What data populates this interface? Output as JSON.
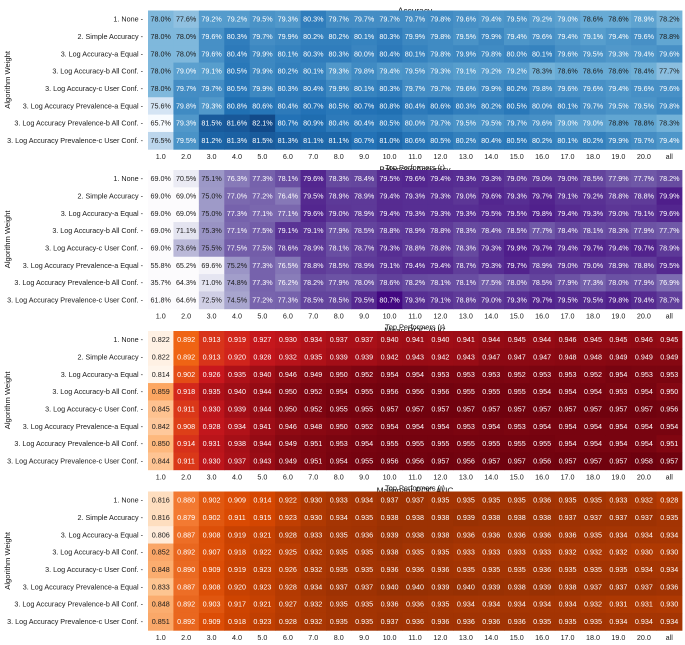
{
  "chart_data": [
    {
      "type": "heatmap",
      "title": "Accuracy",
      "format": "pct1",
      "palette": "blue",
      "vmin": 74,
      "vmax": 83,
      "xlabel": "Top Performers (r)",
      "ylabel": "Algorithm Weight",
      "xticks": [
        "1.0",
        "2.0",
        "3.0",
        "4.0",
        "5.0",
        "6.0",
        "7.0",
        "8.0",
        "9.0",
        "10.0",
        "11.0",
        "12.0",
        "13.0",
        "14.0",
        "15.0",
        "16.0",
        "17.0",
        "18.0",
        "19.0",
        "20.0",
        "all"
      ],
      "yticks": [
        "1. None",
        "2. Simple Accuracy",
        "3. Log Accuracy-a Equal",
        "3. Log Accuracy-b All Conf.",
        "3. Log Accuracy-c User Conf.",
        "3. Log Accuracy Prevalence-a Equal",
        "3. Log Accuracy Prevalence-b All Conf.",
        "3. Log Accuracy Prevalence-c User Conf."
      ],
      "values": [
        [
          78.0,
          77.6,
          79.2,
          79.2,
          79.5,
          79.3,
          80.3,
          79.7,
          79.7,
          79.7,
          79.7,
          79.8,
          79.6,
          79.4,
          79.5,
          79.2,
          79.0,
          78.6,
          78.6,
          78.9,
          78.2
        ],
        [
          78.0,
          78.0,
          79.6,
          80.3,
          79.7,
          79.9,
          80.2,
          80.2,
          80.1,
          80.3,
          79.9,
          79.8,
          79.5,
          79.9,
          79.4,
          79.6,
          79.4,
          79.1,
          79.4,
          79.6,
          78.8
        ],
        [
          78.0,
          78.0,
          79.6,
          80.4,
          79.9,
          80.1,
          80.3,
          80.3,
          80.0,
          80.4,
          80.1,
          79.8,
          79.9,
          79.8,
          80.0,
          80.1,
          79.6,
          79.5,
          79.3,
          79.4,
          79.6
        ],
        [
          78.0,
          79.0,
          79.1,
          80.5,
          79.9,
          80.2,
          80.1,
          79.3,
          79.8,
          79.4,
          79.5,
          79.3,
          79.1,
          79.2,
          79.2,
          78.3,
          78.6,
          78.6,
          78.6,
          78.4,
          77.7
        ],
        [
          78.0,
          79.7,
          79.7,
          80.5,
          79.9,
          80.3,
          80.4,
          79.9,
          80.1,
          80.3,
          79.7,
          79.7,
          79.6,
          79.9,
          80.2,
          79.8,
          79.6,
          79.6,
          79.4,
          79.6,
          79.6
        ],
        [
          75.6,
          79.8,
          79.3,
          80.8,
          80.6,
          80.4,
          80.7,
          80.5,
          80.7,
          80.8,
          80.4,
          80.6,
          80.3,
          80.2,
          80.5,
          80.0,
          80.1,
          79.7,
          79.5,
          79.5,
          79.8
        ],
        [
          65.7,
          79.3,
          81.5,
          81.6,
          82.1,
          80.7,
          80.9,
          80.4,
          80.4,
          80.5,
          80.0,
          79.7,
          79.5,
          79.5,
          79.7,
          79.6,
          79.0,
          79.0,
          78.8,
          78.8,
          78.3
        ],
        [
          76.5,
          79.5,
          81.2,
          81.3,
          81.5,
          81.3,
          81.1,
          81.1,
          80.7,
          81.0,
          80.6,
          80.5,
          80.2,
          80.4,
          80.5,
          80.2,
          80.1,
          80.2,
          79.9,
          79.7,
          79.4
        ]
      ]
    },
    {
      "type": "heatmap",
      "title": "Balanced Accuracy",
      "format": "pct1",
      "palette": "purple",
      "vmin": 69,
      "vmax": 81,
      "xlabel": "Top Performers (r)",
      "ylabel": "Algorithm Weight",
      "xticks": [
        "1.0",
        "2.0",
        "3.0",
        "4.0",
        "5.0",
        "6.0",
        "7.0",
        "8.0",
        "9.0",
        "10.0",
        "11.0",
        "12.0",
        "13.0",
        "14.0",
        "15.0",
        "16.0",
        "17.0",
        "18.0",
        "19.0",
        "20.0",
        "all"
      ],
      "yticks": [
        "1. None",
        "2. Simple Accuracy",
        "3. Log Accuracy-a Equal",
        "3. Log Accuracy-b All Conf.",
        "3. Log Accuracy-c User Conf.",
        "3. Log Accuracy Prevalence-a Equal",
        "3. Log Accuracy Prevalence-b All Conf.",
        "3. Log Accuracy Prevalence-c User Conf."
      ],
      "values": [
        [
          69.0,
          70.5,
          75.1,
          76.3,
          77.3,
          78.1,
          79.6,
          78.3,
          78.4,
          79.5,
          79.6,
          79.4,
          79.3,
          79.3,
          79.0,
          79.0,
          79.0,
          78.5,
          77.9,
          77.7,
          78.2
        ],
        [
          69.0,
          69.0,
          75.0,
          77.0,
          77.2,
          76.4,
          79.5,
          78.9,
          78.9,
          79.4,
          79.3,
          79.3,
          79.0,
          79.6,
          79.3,
          79.7,
          79.1,
          79.2,
          78.8,
          78.8,
          79.9
        ],
        [
          69.0,
          69.0,
          75.0,
          77.3,
          77.1,
          77.1,
          79.6,
          79.0,
          78.9,
          79.4,
          79.3,
          79.3,
          79.3,
          79.5,
          79.5,
          79.8,
          79.4,
          79.3,
          79.0,
          79.1,
          79.6
        ],
        [
          69.0,
          71.1,
          75.3,
          77.1,
          77.5,
          79.1,
          79.1,
          77.9,
          78.5,
          78.8,
          78.9,
          78.8,
          78.3,
          78.4,
          78.5,
          77.7,
          78.4,
          78.1,
          78.3,
          77.9,
          77.7
        ],
        [
          69.0,
          73.6,
          75.5,
          77.5,
          77.5,
          78.6,
          78.9,
          78.1,
          78.7,
          79.3,
          78.8,
          78.8,
          78.3,
          79.3,
          79.9,
          79.7,
          79.4,
          79.7,
          79.4,
          79.7,
          78.9
        ],
        [
          55.8,
          65.2,
          69.6,
          75.2,
          77.3,
          76.5,
          78.8,
          78.5,
          78.9,
          79.1,
          79.4,
          79.4,
          78.7,
          79.3,
          79.7,
          78.9,
          79.0,
          79.0,
          78.9,
          78.8,
          79.5
        ],
        [
          35.7,
          64.3,
          71.0,
          74.8,
          77.3,
          76.2,
          78.2,
          77.9,
          78.0,
          78.6,
          78.2,
          78.1,
          78.1,
          77.5,
          78.0,
          78.5,
          77.9,
          77.3,
          78.0,
          77.9,
          76.9
        ],
        [
          61.8,
          64.6,
          72.5,
          74.5,
          77.2,
          77.3,
          78.5,
          78.5,
          79.5,
          80.7,
          79.3,
          79.1,
          78.8,
          79.0,
          79.3,
          79.7,
          79.5,
          79.5,
          79.8,
          79.4,
          78.7
        ]
      ]
    },
    {
      "type": "heatmap",
      "title": "Mean ROC AUC",
      "format": "dec3",
      "palette": "red",
      "vmin": 0.82,
      "vmax": 0.96,
      "xlabel": "Top Performers (r)",
      "ylabel": "Algorithm Weight",
      "xticks": [
        "1.0",
        "2.0",
        "3.0",
        "4.0",
        "5.0",
        "6.0",
        "7.0",
        "8.0",
        "9.0",
        "10.0",
        "11.0",
        "12.0",
        "13.0",
        "14.0",
        "15.0",
        "16.0",
        "17.0",
        "18.0",
        "19.0",
        "20.0",
        "all"
      ],
      "yticks": [
        "1. None",
        "2. Simple Accuracy",
        "3. Log Accuracy-a Equal",
        "3. Log Accuracy-b All Conf.",
        "3. Log Accuracy-c User Conf.",
        "3. Log Accuracy Prevalence-a Equal",
        "3. Log Accuracy Prevalence-b All Conf.",
        "3. Log Accuracy Prevalence-c User Conf."
      ],
      "values": [
        [
          0.822,
          0.892,
          0.913,
          0.919,
          0.927,
          0.93,
          0.934,
          0.937,
          0.937,
          0.94,
          0.941,
          0.94,
          0.941,
          0.944,
          0.945,
          0.944,
          0.946,
          0.945,
          0.945,
          0.946,
          0.945
        ],
        [
          0.822,
          0.892,
          0.913,
          0.92,
          0.928,
          0.932,
          0.935,
          0.939,
          0.939,
          0.942,
          0.943,
          0.942,
          0.943,
          0.947,
          0.947,
          0.947,
          0.948,
          0.948,
          0.949,
          0.949,
          0.949
        ],
        [
          0.814,
          0.902,
          0.926,
          0.935,
          0.94,
          0.946,
          0.949,
          0.95,
          0.952,
          0.954,
          0.954,
          0.953,
          0.953,
          0.953,
          0.952,
          0.953,
          0.953,
          0.952,
          0.954,
          0.953,
          0.953
        ],
        [
          0.859,
          0.918,
          0.935,
          0.94,
          0.944,
          0.95,
          0.952,
          0.954,
          0.955,
          0.956,
          0.956,
          0.956,
          0.955,
          0.955,
          0.955,
          0.954,
          0.954,
          0.954,
          0.953,
          0.954,
          0.95
        ],
        [
          0.845,
          0.911,
          0.93,
          0.939,
          0.944,
          0.95,
          0.952,
          0.955,
          0.955,
          0.957,
          0.957,
          0.957,
          0.957,
          0.957,
          0.957,
          0.957,
          0.957,
          0.957,
          0.957,
          0.957,
          0.956
        ],
        [
          0.842,
          0.908,
          0.928,
          0.934,
          0.941,
          0.946,
          0.948,
          0.95,
          0.952,
          0.954,
          0.954,
          0.954,
          0.953,
          0.954,
          0.953,
          0.954,
          0.954,
          0.954,
          0.954,
          0.954,
          0.954
        ],
        [
          0.85,
          0.914,
          0.931,
          0.938,
          0.944,
          0.949,
          0.951,
          0.953,
          0.954,
          0.955,
          0.955,
          0.955,
          0.955,
          0.955,
          0.955,
          0.955,
          0.954,
          0.954,
          0.954,
          0.954,
          0.951
        ],
        [
          0.844,
          0.911,
          0.93,
          0.937,
          0.943,
          0.949,
          0.951,
          0.954,
          0.955,
          0.956,
          0.956,
          0.957,
          0.956,
          0.957,
          0.957,
          0.956,
          0.957,
          0.957,
          0.957,
          0.958,
          0.957
        ]
      ]
    },
    {
      "type": "heatmap",
      "title": "Malignant ROC AUC",
      "format": "dec3",
      "palette": "orange",
      "vmin": 0.8,
      "vmax": 0.95,
      "xlabel": "Top Performers (r)",
      "ylabel": "Algorithm Weight",
      "xticks": [
        "1.0",
        "2.0",
        "3.0",
        "4.0",
        "5.0",
        "6.0",
        "7.0",
        "8.0",
        "9.0",
        "10.0",
        "11.0",
        "12.0",
        "13.0",
        "14.0",
        "15.0",
        "16.0",
        "17.0",
        "18.0",
        "19.0",
        "20.0",
        "all"
      ],
      "yticks": [
        "1. None",
        "2. Simple Accuracy",
        "3. Log Accuracy-a Equal",
        "3. Log Accuracy-b All Conf.",
        "3. Log Accuracy-c User Conf.",
        "3. Log Accuracy Prevalence-a Equal",
        "3. Log Accuracy Prevalence-b All Conf.",
        "3. Log Accuracy Prevalence-c User Conf."
      ],
      "values": [
        [
          0.816,
          0.88,
          0.902,
          0.909,
          0.914,
          0.922,
          0.93,
          0.933,
          0.934,
          0.937,
          0.937,
          0.935,
          0.935,
          0.935,
          0.935,
          0.936,
          0.935,
          0.935,
          0.933,
          0.932,
          0.928
        ],
        [
          0.816,
          0.879,
          0.902,
          0.911,
          0.915,
          0.923,
          0.93,
          0.934,
          0.935,
          0.938,
          0.938,
          0.938,
          0.939,
          0.938,
          0.938,
          0.938,
          0.937,
          0.937,
          0.937,
          0.937,
          0.935
        ],
        [
          0.806,
          0.887,
          0.908,
          0.919,
          0.921,
          0.928,
          0.933,
          0.935,
          0.936,
          0.939,
          0.938,
          0.938,
          0.936,
          0.936,
          0.936,
          0.936,
          0.936,
          0.935,
          0.934,
          0.934,
          0.934
        ],
        [
          0.852,
          0.892,
          0.907,
          0.918,
          0.922,
          0.925,
          0.932,
          0.935,
          0.935,
          0.938,
          0.935,
          0.935,
          0.933,
          0.933,
          0.933,
          0.933,
          0.932,
          0.932,
          0.932,
          0.93,
          0.93
        ],
        [
          0.848,
          0.89,
          0.909,
          0.919,
          0.923,
          0.926,
          0.932,
          0.935,
          0.935,
          0.936,
          0.936,
          0.936,
          0.935,
          0.935,
          0.935,
          0.936,
          0.935,
          0.935,
          0.935,
          0.934,
          0.934
        ],
        [
          0.833,
          0.887,
          0.908,
          0.92,
          0.923,
          0.928,
          0.934,
          0.937,
          0.937,
          0.94,
          0.94,
          0.939,
          0.94,
          0.939,
          0.938,
          0.939,
          0.938,
          0.937,
          0.937,
          0.937,
          0.936
        ],
        [
          0.848,
          0.892,
          0.903,
          0.917,
          0.921,
          0.927,
          0.932,
          0.935,
          0.935,
          0.936,
          0.936,
          0.935,
          0.934,
          0.934,
          0.934,
          0.934,
          0.934,
          0.932,
          0.931,
          0.931,
          0.93
        ],
        [
          0.851,
          0.892,
          0.909,
          0.918,
          0.923,
          0.928,
          0.932,
          0.935,
          0.935,
          0.937,
          0.936,
          0.936,
          0.936,
          0.936,
          0.936,
          0.935,
          0.935,
          0.935,
          0.934,
          0.934,
          0.934
        ]
      ]
    }
  ]
}
